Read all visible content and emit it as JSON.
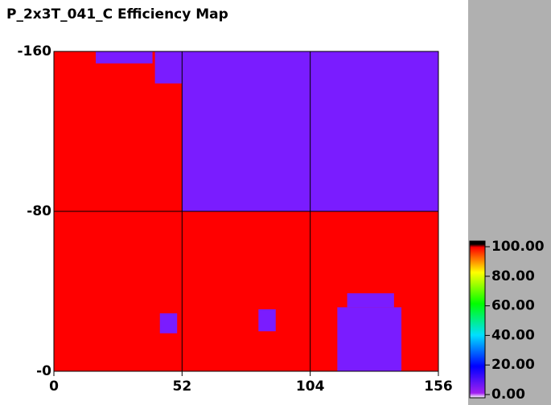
{
  "chart_data": {
    "type": "heatmap",
    "title": "P_2x3T_041_C Efficiency Map",
    "xlim": [
      0,
      156
    ],
    "ylim": [
      0,
      -160
    ],
    "xticks": [
      0,
      52,
      104,
      156
    ],
    "yticks": [
      {
        "value": 0,
        "label": "-0"
      },
      -80,
      -160
    ],
    "grid": true,
    "regions": [
      {
        "x": [
          0,
          156
        ],
        "y": [
          0,
          -160
        ],
        "value": 100,
        "color": "#ff0000"
      },
      {
        "x": [
          52,
          104
        ],
        "y": [
          -80,
          -160
        ],
        "value": 10,
        "color": "#7a1cff"
      },
      {
        "x": [
          104,
          156
        ],
        "y": [
          -80,
          -160
        ],
        "value": 10,
        "color": "#7a1cff"
      },
      {
        "x": [
          115,
          141
        ],
        "y": [
          0,
          -32
        ],
        "value": 10,
        "color": "#7a1cff"
      },
      {
        "x": [
          119,
          138
        ],
        "y": [
          -32,
          -39
        ],
        "value": 10,
        "color": "#7a1cff"
      },
      {
        "x": [
          43,
          50
        ],
        "y": [
          -19,
          -29
        ],
        "value": 10,
        "color": "#7a1cff"
      },
      {
        "x": [
          83,
          90
        ],
        "y": [
          -20,
          -31
        ],
        "value": 10,
        "color": "#7a1cff"
      },
      {
        "x": [
          41,
          52
        ],
        "y": [
          -144,
          -160
        ],
        "value": 10,
        "color": "#7a1cff"
      },
      {
        "x": [
          17,
          40
        ],
        "y": [
          -154,
          -160
        ],
        "value": 10,
        "color": "#7a1cff"
      }
    ],
    "colorbar": {
      "lim": [
        0,
        100
      ],
      "ticks": [
        {
          "value": 100,
          "label": "100.00"
        },
        {
          "value": 80,
          "label": "80.00"
        },
        {
          "value": 60,
          "label": "60.00"
        },
        {
          "value": 40,
          "label": "40.00"
        },
        {
          "value": 20,
          "label": "20.00"
        },
        {
          "value": 0,
          "label": "0.00"
        }
      ]
    }
  }
}
